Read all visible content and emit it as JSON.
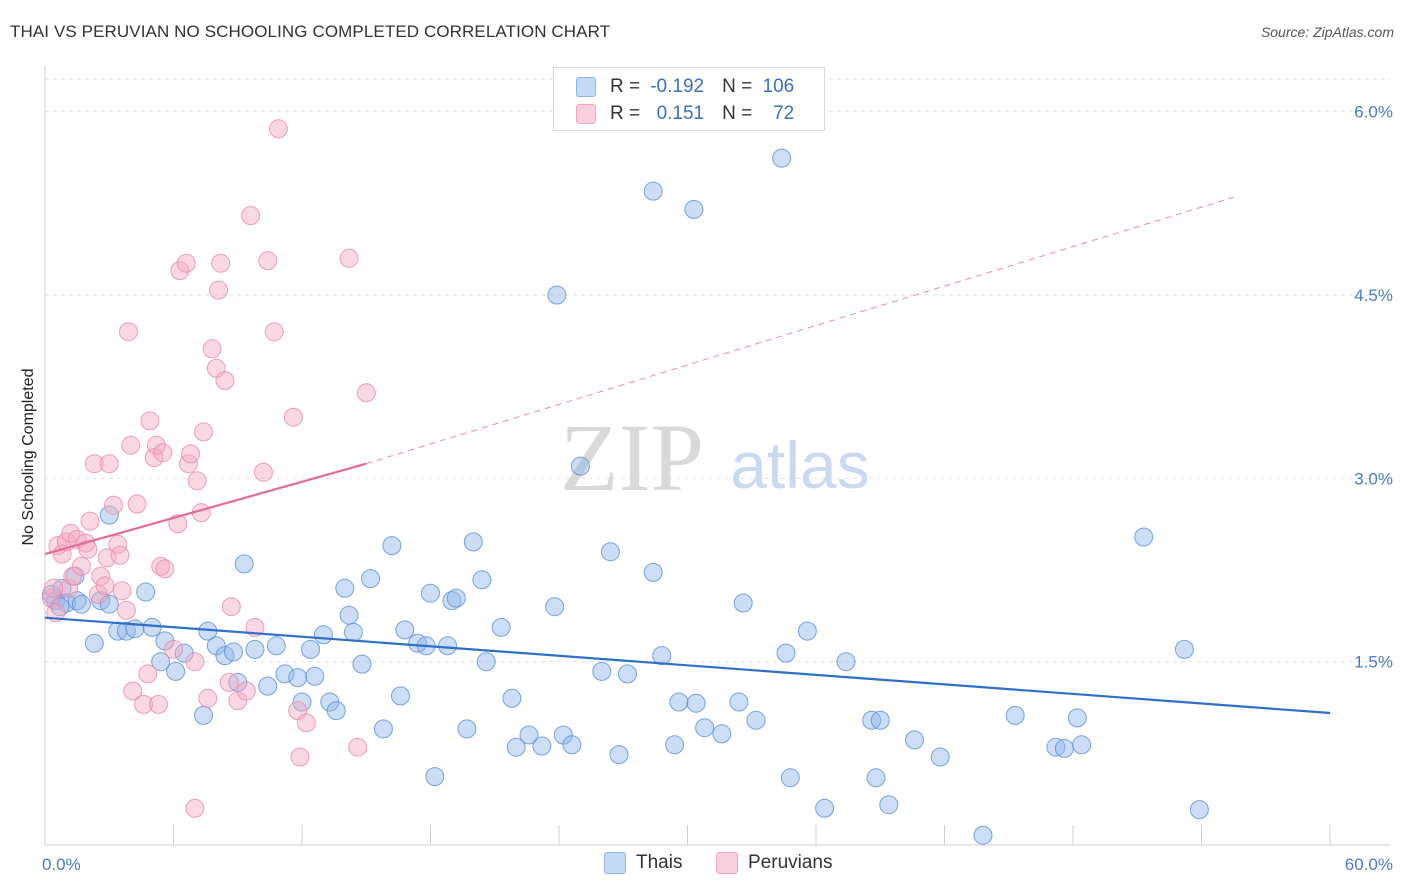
{
  "title": "THAI VS PERUVIAN NO SCHOOLING COMPLETED CORRELATION CHART",
  "source": "Source: ZipAtlas.com",
  "watermark": {
    "zip": "ZIP",
    "atlas": "atlas"
  },
  "legend": {
    "rows": [
      {
        "r_label": "R =",
        "r_value": "-0.192",
        "n_label": "N =",
        "n_value": "106",
        "color": "#8db6e8"
      },
      {
        "r_label": "R =",
        "r_value": "0.151",
        "n_label": "N =",
        "n_value": "72",
        "color": "#f4a8c0"
      }
    ]
  },
  "bottom_legend": [
    {
      "label": "Thais",
      "color": "#8db6e8"
    },
    {
      "label": "Peruvians",
      "color": "#f4a8c0"
    }
  ],
  "chart_data": {
    "type": "scatter",
    "ylabel": "No Schooling Completed",
    "xlabel": "",
    "xlim": [
      0,
      60
    ],
    "ylim": [
      0,
      6.3
    ],
    "x_tick_labels": [
      "0.0%",
      "60.0%"
    ],
    "y_ticks": [
      1.5,
      3.0,
      4.5,
      6.0
    ],
    "y_tick_labels": [
      "1.5%",
      "3.0%",
      "4.5%",
      "6.0%"
    ],
    "grid": true,
    "series": [
      {
        "name": "Thais",
        "color": "#8db6e8",
        "stroke": "#5a8fd6",
        "trend": {
          "x": [
            0,
            60
          ],
          "y": [
            1.86,
            1.08
          ],
          "style": "solid",
          "color": "#2f6fcc"
        },
        "points": [
          [
            0.3,
            2.05
          ],
          [
            0.5,
            2.0
          ],
          [
            0.8,
            2.1
          ],
          [
            1.0,
            1.98
          ],
          [
            1.5,
            2.0
          ],
          [
            1.7,
            1.97
          ],
          [
            1.4,
            2.2
          ],
          [
            2.6,
            2.0
          ],
          [
            3.0,
            2.7
          ],
          [
            2.3,
            1.65
          ],
          [
            3.4,
            1.75
          ],
          [
            3.8,
            1.75
          ],
          [
            4.2,
            1.77
          ],
          [
            4.7,
            2.07
          ],
          [
            5.0,
            1.78
          ],
          [
            5.4,
            1.5
          ],
          [
            5.6,
            1.67
          ],
          [
            6.1,
            1.42
          ],
          [
            6.5,
            1.57
          ],
          [
            7.4,
            1.06
          ],
          [
            7.6,
            1.75
          ],
          [
            8.0,
            1.63
          ],
          [
            8.4,
            1.55
          ],
          [
            8.8,
            1.58
          ],
          [
            9.0,
            1.33
          ],
          [
            9.3,
            2.3
          ],
          [
            9.8,
            1.6
          ],
          [
            10.4,
            1.3
          ],
          [
            10.8,
            1.63
          ],
          [
            11.2,
            1.4
          ],
          [
            11.8,
            1.37
          ],
          [
            12.0,
            1.17
          ],
          [
            12.4,
            1.6
          ],
          [
            12.6,
            1.38
          ],
          [
            13.0,
            1.72
          ],
          [
            13.3,
            1.17
          ],
          [
            13.6,
            1.1
          ],
          [
            14.0,
            2.1
          ],
          [
            14.2,
            1.88
          ],
          [
            14.4,
            1.74
          ],
          [
            14.8,
            1.48
          ],
          [
            15.2,
            2.18
          ],
          [
            15.8,
            0.95
          ],
          [
            16.2,
            2.45
          ],
          [
            16.6,
            1.22
          ],
          [
            16.8,
            1.76
          ],
          [
            17.4,
            1.65
          ],
          [
            17.8,
            1.63
          ],
          [
            18.0,
            2.06
          ],
          [
            18.2,
            0.56
          ],
          [
            18.8,
            1.63
          ],
          [
            19.0,
            2.0
          ],
          [
            19.2,
            2.02
          ],
          [
            19.7,
            0.95
          ],
          [
            20.0,
            2.48
          ],
          [
            20.4,
            2.17
          ],
          [
            20.6,
            1.5
          ],
          [
            21.3,
            1.78
          ],
          [
            21.8,
            1.2
          ],
          [
            22.0,
            0.8
          ],
          [
            22.6,
            0.9
          ],
          [
            23.2,
            0.81
          ],
          [
            23.8,
            1.95
          ],
          [
            24.2,
            0.9
          ],
          [
            24.6,
            0.82
          ],
          [
            25.0,
            3.1
          ],
          [
            26.0,
            1.42
          ],
          [
            26.4,
            2.4
          ],
          [
            26.8,
            0.74
          ],
          [
            27.2,
            1.4
          ],
          [
            28.8,
            1.55
          ],
          [
            28.4,
            2.23
          ],
          [
            29.4,
            0.82
          ],
          [
            29.6,
            1.17
          ],
          [
            30.4,
            1.16
          ],
          [
            30.8,
            0.96
          ],
          [
            31.6,
            0.91
          ],
          [
            32.4,
            1.17
          ],
          [
            32.6,
            1.98
          ],
          [
            33.2,
            1.02
          ],
          [
            34.6,
            1.57
          ],
          [
            34.8,
            0.55
          ],
          [
            35.6,
            1.75
          ],
          [
            36.4,
            0.3
          ],
          [
            37.4,
            1.5
          ],
          [
            38.6,
            1.02
          ],
          [
            38.8,
            0.55
          ],
          [
            39.0,
            1.02
          ],
          [
            39.4,
            0.33
          ],
          [
            40.6,
            0.86
          ],
          [
            41.8,
            0.72
          ],
          [
            23.9,
            4.5
          ],
          [
            28.4,
            5.35
          ],
          [
            30.3,
            5.2
          ],
          [
            34.4,
            5.62
          ],
          [
            43.8,
            0.08
          ],
          [
            45.3,
            1.06
          ],
          [
            47.2,
            0.8
          ],
          [
            47.6,
            0.79
          ],
          [
            48.2,
            1.04
          ],
          [
            48.4,
            0.82
          ],
          [
            51.3,
            2.52
          ],
          [
            53.2,
            1.6
          ],
          [
            53.9,
            0.29
          ],
          [
            3.0,
            1.97
          ],
          [
            0.7,
            1.95
          ]
        ]
      },
      {
        "name": "Peruvians",
        "color": "#f4a8c0",
        "stroke": "#e98aaa",
        "trend_solid": {
          "x": [
            0,
            15
          ],
          "y": [
            2.38,
            3.12
          ],
          "color": "#e56a95"
        },
        "trend_dashed": {
          "x": [
            15,
            55.5
          ],
          "y": [
            3.12,
            5.3
          ],
          "color": "#e98aaa"
        },
        "points": [
          [
            0.3,
            2.02
          ],
          [
            0.5,
            1.9
          ],
          [
            0.6,
            2.45
          ],
          [
            0.8,
            2.38
          ],
          [
            1.0,
            2.48
          ],
          [
            1.1,
            2.1
          ],
          [
            1.2,
            2.55
          ],
          [
            1.3,
            2.2
          ],
          [
            1.5,
            2.5
          ],
          [
            1.7,
            2.28
          ],
          [
            1.9,
            2.47
          ],
          [
            2.0,
            2.42
          ],
          [
            2.1,
            2.65
          ],
          [
            2.3,
            3.12
          ],
          [
            2.5,
            2.05
          ],
          [
            2.6,
            2.2
          ],
          [
            2.8,
            2.12
          ],
          [
            2.9,
            2.35
          ],
          [
            3.0,
            3.12
          ],
          [
            3.2,
            2.78
          ],
          [
            3.4,
            2.46
          ],
          [
            3.5,
            2.37
          ],
          [
            3.6,
            2.08
          ],
          [
            3.8,
            1.92
          ],
          [
            3.9,
            4.2
          ],
          [
            4.0,
            3.27
          ],
          [
            4.1,
            1.26
          ],
          [
            4.3,
            2.79
          ],
          [
            4.6,
            1.15
          ],
          [
            4.8,
            1.4
          ],
          [
            4.9,
            3.47
          ],
          [
            5.1,
            3.17
          ],
          [
            5.2,
            3.27
          ],
          [
            5.3,
            1.15
          ],
          [
            5.4,
            2.28
          ],
          [
            5.5,
            3.21
          ],
          [
            5.6,
            2.26
          ],
          [
            6.0,
            1.6
          ],
          [
            6.2,
            2.63
          ],
          [
            6.3,
            4.7
          ],
          [
            6.6,
            4.76
          ],
          [
            6.7,
            3.12
          ],
          [
            6.8,
            3.2
          ],
          [
            7.0,
            1.5
          ],
          [
            7.1,
            2.98
          ],
          [
            7.3,
            2.72
          ],
          [
            7.4,
            3.38
          ],
          [
            7.6,
            1.2
          ],
          [
            7.8,
            4.06
          ],
          [
            8.0,
            3.9
          ],
          [
            8.1,
            4.54
          ],
          [
            8.2,
            4.76
          ],
          [
            8.4,
            3.8
          ],
          [
            8.6,
            1.33
          ],
          [
            8.7,
            1.95
          ],
          [
            9.0,
            1.18
          ],
          [
            9.4,
            1.26
          ],
          [
            9.6,
            5.15
          ],
          [
            9.8,
            1.78
          ],
          [
            10.2,
            3.05
          ],
          [
            10.4,
            4.78
          ],
          [
            10.7,
            4.2
          ],
          [
            10.9,
            5.86
          ],
          [
            11.6,
            3.5
          ],
          [
            11.8,
            1.1
          ],
          [
            12.2,
            1.0
          ],
          [
            14.2,
            4.8
          ],
          [
            14.6,
            0.8
          ],
          [
            15.0,
            3.7
          ],
          [
            7.0,
            0.3
          ],
          [
            11.9,
            0.72
          ],
          [
            0.4,
            2.1
          ]
        ]
      }
    ]
  }
}
